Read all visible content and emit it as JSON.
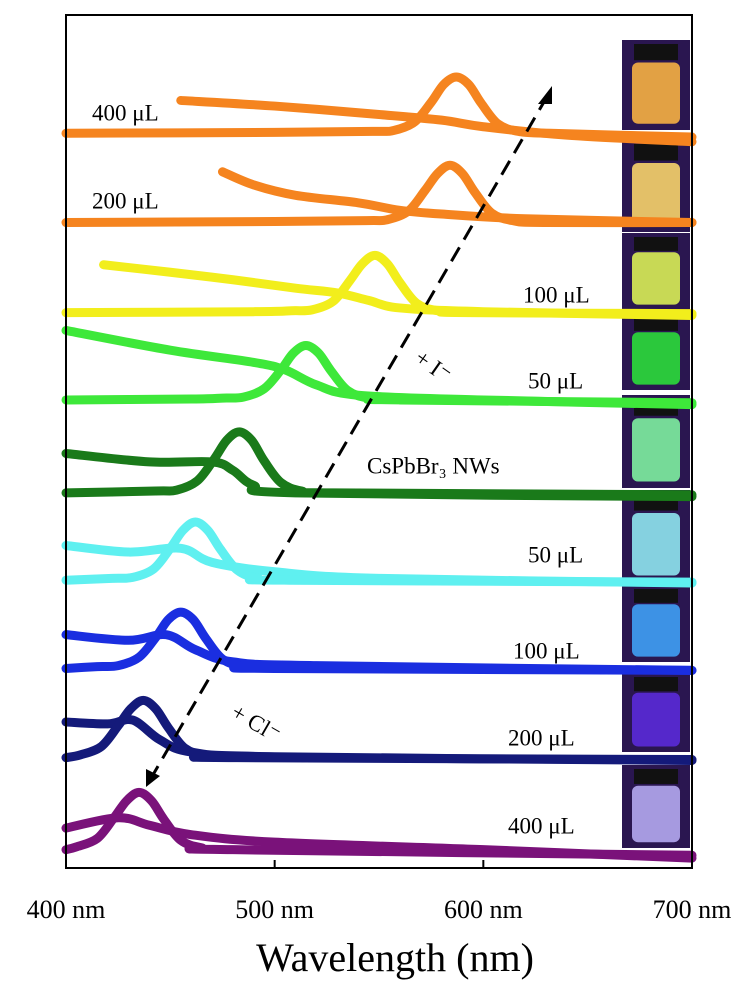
{
  "chart_data": {
    "type": "line",
    "xlabel": "Wavelength (nm)",
    "xlim": [
      400,
      700
    ],
    "ylim": [
      0,
      9
    ],
    "xticks": [
      {
        "value": 400,
        "label": "400 nm"
      },
      {
        "value": 500,
        "label": "500 nm"
      },
      {
        "value": 600,
        "label": "600 nm"
      },
      {
        "value": 700,
        "label": "700 nm"
      }
    ],
    "annotations": [
      "+ I⁻",
      "+ Cl⁻"
    ],
    "series": [
      {
        "name": "400 μL",
        "color": "#f5841f",
        "x": [
          400,
          500,
          547,
          557,
          567,
          575,
          581,
          587,
          593,
          599,
          607,
          617,
          632,
          700
        ],
        "values": [
          7.74,
          7.75,
          7.76,
          7.77,
          7.86,
          8.07,
          8.26,
          8.34,
          8.26,
          8.06,
          7.84,
          7.76,
          7.74,
          7.7
        ],
        "abs_x": [
          455,
          500,
          550,
          580,
          600,
          640,
          700
        ],
        "abs_values": [
          8.09,
          8.03,
          7.94,
          7.88,
          7.81,
          7.72,
          7.65
        ]
      },
      {
        "name": "200 μL",
        "color": "#f5841f",
        "x": [
          400,
          500,
          544,
          554,
          564,
          572,
          578,
          584,
          590,
          596,
          604,
          614,
          629,
          700
        ],
        "values": [
          6.79,
          6.8,
          6.81,
          6.82,
          6.91,
          7.13,
          7.31,
          7.4,
          7.31,
          7.11,
          6.89,
          6.81,
          6.79,
          6.79
        ],
        "abs_x": [
          475,
          490,
          510,
          540,
          560,
          580,
          620,
          700
        ],
        "abs_values": [
          7.33,
          7.19,
          7.08,
          7.0,
          6.92,
          6.88,
          6.83,
          6.79
        ]
      },
      {
        "name": "100 μL",
        "color": "#f2ee1c",
        "x": [
          400,
          490,
          508,
          518,
          528,
          536,
          542,
          548,
          554,
          560,
          568,
          578,
          593,
          700
        ],
        "values": [
          5.83,
          5.84,
          5.85,
          5.86,
          5.95,
          6.17,
          6.35,
          6.44,
          6.35,
          6.15,
          5.93,
          5.85,
          5.83,
          5.82
        ],
        "abs_x": [
          418,
          450,
          480,
          510,
          530,
          545,
          560,
          600,
          700
        ],
        "abs_values": [
          6.34,
          6.26,
          6.18,
          6.09,
          6.04,
          5.96,
          5.88,
          5.84,
          5.8
        ]
      },
      {
        "name": "50 μL",
        "color": "#3ee83a",
        "x": [
          400,
          460,
          475,
          485,
          495,
          503,
          509,
          515,
          521,
          527,
          535,
          545,
          560,
          700
        ],
        "values": [
          4.9,
          4.91,
          4.92,
          4.93,
          5.02,
          5.22,
          5.4,
          5.48,
          5.4,
          5.21,
          5.0,
          4.92,
          4.9,
          4.87
        ],
        "abs_x": [
          400,
          450,
          490,
          505,
          520,
          540,
          600,
          700
        ],
        "abs_values": [
          5.64,
          5.43,
          5.3,
          5.22,
          5.06,
          4.95,
          4.9,
          4.85
        ]
      },
      {
        "name": "CsPbBr₃ NWs",
        "color": "#1a7a1a",
        "x": [
          400,
          443,
          453,
          463,
          471,
          477,
          483,
          489,
          495,
          503,
          513,
          528,
          700
        ],
        "values": [
          3.91,
          3.93,
          3.94,
          4.04,
          4.27,
          4.47,
          4.56,
          4.47,
          4.25,
          4.02,
          3.93,
          3.91,
          3.89
        ],
        "abs_x": [
          400,
          440,
          470,
          480,
          490,
          510,
          700
        ],
        "abs_values": [
          4.33,
          4.24,
          4.24,
          4.15,
          3.99,
          3.91,
          3.87
        ]
      },
      {
        "name": "50 μL",
        "color": "#5ff0f0",
        "x": [
          400,
          422,
          432,
          442,
          450,
          456,
          462,
          468,
          474,
          482,
          492,
          507,
          700
        ],
        "values": [
          2.98,
          3.0,
          3.01,
          3.1,
          3.32,
          3.51,
          3.6,
          3.51,
          3.31,
          3.09,
          3.0,
          2.98,
          2.96
        ],
        "abs_x": [
          400,
          430,
          455,
          470,
          500,
          550,
          700
        ],
        "abs_values": [
          3.35,
          3.28,
          3.32,
          3.17,
          3.07,
          3.0,
          2.95
        ]
      },
      {
        "name": "100 μL",
        "color": "#1a2ee0",
        "x": [
          400,
          415,
          425,
          435,
          443,
          449,
          455,
          461,
          467,
          475,
          485,
          500,
          700
        ],
        "values": [
          2.04,
          2.06,
          2.07,
          2.16,
          2.37,
          2.56,
          2.64,
          2.56,
          2.36,
          2.14,
          2.06,
          2.04,
          2.02
        ],
        "abs_x": [
          400,
          430,
          448,
          462,
          480,
          520,
          700
        ],
        "abs_values": [
          2.4,
          2.34,
          2.4,
          2.24,
          2.11,
          2.07,
          2.02
        ]
      },
      {
        "name": "200 μL",
        "color": "#141a7a",
        "x": [
          400,
          407,
          417,
          425,
          431,
          437,
          443,
          449,
          457,
          467,
          482,
          700
        ],
        "values": [
          1.09,
          1.12,
          1.21,
          1.43,
          1.61,
          1.7,
          1.61,
          1.41,
          1.19,
          1.11,
          1.09,
          1.07
        ],
        "abs_x": [
          400,
          420,
          432,
          445,
          460,
          500,
          700
        ],
        "abs_values": [
          1.47,
          1.45,
          1.49,
          1.28,
          1.15,
          1.1,
          1.06
        ]
      },
      {
        "name": "400 μL",
        "color": "#7a127a",
        "x": [
          400,
          405,
          415,
          423,
          429,
          435,
          441,
          447,
          455,
          465,
          480,
          700
        ],
        "values": [
          0.11,
          0.14,
          0.23,
          0.45,
          0.63,
          0.72,
          0.63,
          0.43,
          0.21,
          0.13,
          0.11,
          0.05
        ],
        "abs_x": [
          400,
          425,
          440,
          460,
          500,
          600,
          700
        ],
        "abs_values": [
          0.34,
          0.45,
          0.37,
          0.27,
          0.19,
          0.11,
          0.02
        ]
      }
    ]
  }
}
